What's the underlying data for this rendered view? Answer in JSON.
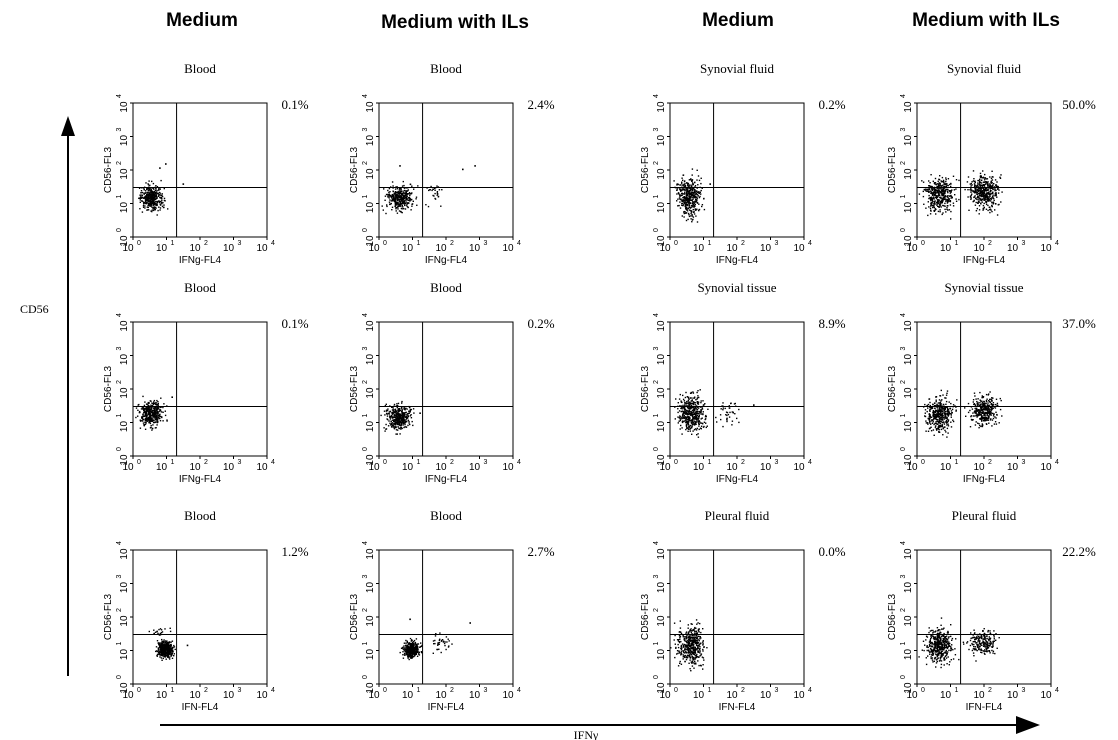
{
  "column_headers": [
    "Medium",
    "Medium with ILs",
    "Medium",
    "Medium with ILs"
  ],
  "y_axis_label": "CD56",
  "x_axis_label": "IFNγ",
  "chart_data": [
    {
      "type": "scatter",
      "row": 0,
      "col": 0,
      "title": "Blood",
      "percent": "0.1%",
      "xlabel": "IFNg-FL4",
      "ylabel": "CD56-FL3",
      "x_ticks": [
        "10",
        "10",
        "10",
        "10",
        "10"
      ],
      "tick_exponents": [
        "0",
        "1",
        "2",
        "3",
        "4"
      ],
      "xscale": "log",
      "yscale": "log",
      "xlim": [
        1,
        10000
      ],
      "ylim": [
        1,
        10000
      ],
      "gate": {
        "x": 20,
        "y": 30
      },
      "clusters": [
        {
          "x": [
            1,
            12
          ],
          "y": [
            4,
            55
          ],
          "n": 360
        }
      ],
      "outliers": [
        [
          6,
          120
        ],
        [
          9,
          160
        ],
        [
          30,
          40
        ]
      ]
    },
    {
      "type": "scatter",
      "row": 0,
      "col": 1,
      "title": "Blood",
      "percent": "2.4%",
      "xlabel": "IFNg-FL4",
      "ylabel": "CD56-FL3",
      "x_ticks": [
        "10",
        "10",
        "10",
        "10",
        "10"
      ],
      "tick_exponents": [
        "0",
        "1",
        "2",
        "3",
        "4"
      ],
      "xscale": "log",
      "yscale": "log",
      "xlim": [
        1,
        10000
      ],
      "ylim": [
        1,
        10000
      ],
      "gate": {
        "x": 20,
        "y": 30
      },
      "clusters": [
        {
          "x": [
            1,
            16
          ],
          "y": [
            4,
            55
          ],
          "n": 340
        },
        {
          "x": [
            16,
            120
          ],
          "y": [
            6,
            80
          ],
          "n": 30
        }
      ],
      "outliers": [
        [
          300,
          110
        ],
        [
          700,
          140
        ],
        [
          4,
          140
        ]
      ]
    },
    {
      "type": "scatter",
      "row": 0,
      "col": 2,
      "title": "Synovial fluid",
      "percent": "0.2%",
      "xlabel": "IFNg-FL4",
      "ylabel": "CD56-FL3",
      "x_ticks": [
        "10",
        "10",
        "10",
        "10",
        "10"
      ],
      "tick_exponents": [
        "0",
        "1",
        "2",
        "3",
        "4"
      ],
      "xscale": "log",
      "yscale": "log",
      "xlim": [
        1,
        10000
      ],
      "ylim": [
        1,
        10000
      ],
      "gate": {
        "x": 20,
        "y": 30
      },
      "clusters": [
        {
          "x": [
            1,
            12
          ],
          "y": [
            2,
            150
          ],
          "n": 420
        }
      ],
      "outliers": [
        [
          15,
          40
        ]
      ]
    },
    {
      "type": "scatter",
      "row": 0,
      "col": 3,
      "title": "Synovial fluid",
      "percent": "50.0%",
      "xlabel": "IFNg-FL4",
      "ylabel": "CD56-FL3",
      "x_ticks": [
        "10",
        "10",
        "10",
        "10",
        "10"
      ],
      "tick_exponents": [
        "0",
        "1",
        "2",
        "3",
        "4"
      ],
      "xscale": "log",
      "yscale": "log",
      "xlim": [
        1,
        10000
      ],
      "ylim": [
        1,
        10000
      ],
      "gate": {
        "x": 20,
        "y": 30
      },
      "clusters": [
        {
          "x": [
            1,
            20
          ],
          "y": [
            3,
            120
          ],
          "n": 380
        },
        {
          "x": [
            20,
            500
          ],
          "y": [
            4,
            130
          ],
          "n": 420
        }
      ],
      "outliers": []
    },
    {
      "type": "scatter",
      "row": 1,
      "col": 0,
      "title": "Blood",
      "percent": "0.1%",
      "xlabel": "IFNg-FL4",
      "ylabel": "CD56-FL3",
      "x_ticks": [
        "10",
        "10",
        "10",
        "10",
        "10"
      ],
      "tick_exponents": [
        "0",
        "1",
        "2",
        "3",
        "4"
      ],
      "xscale": "log",
      "yscale": "log",
      "xlim": [
        1,
        10000
      ],
      "ylim": [
        1,
        10000
      ],
      "gate": {
        "x": 20,
        "y": 30
      },
      "clusters": [
        {
          "x": [
            1,
            12
          ],
          "y": [
            5,
            75
          ],
          "n": 380
        }
      ],
      "outliers": [
        [
          14,
          60
        ]
      ]
    },
    {
      "type": "scatter",
      "row": 1,
      "col": 1,
      "title": "Blood",
      "percent": "0.2%",
      "xlabel": "IFNg-FL4",
      "ylabel": "CD56-FL3",
      "x_ticks": [
        "10",
        "10",
        "10",
        "10",
        "10"
      ],
      "tick_exponents": [
        "0",
        "1",
        "2",
        "3",
        "4"
      ],
      "xscale": "log",
      "yscale": "log",
      "xlim": [
        1,
        10000
      ],
      "ylim": [
        1,
        10000
      ],
      "gate": {
        "x": 20,
        "y": 30
      },
      "clusters": [
        {
          "x": [
            1,
            13
          ],
          "y": [
            4,
            55
          ],
          "n": 360
        }
      ],
      "outliers": [
        [
          16,
          20
        ]
      ]
    },
    {
      "type": "scatter",
      "row": 1,
      "col": 2,
      "title": "Synovial tissue",
      "percent": "8.9%",
      "xlabel": "IFNg-FL4",
      "ylabel": "CD56-FL3",
      "x_ticks": [
        "10",
        "10",
        "10",
        "10",
        "10"
      ],
      "tick_exponents": [
        "0",
        "1",
        "2",
        "3",
        "4"
      ],
      "xscale": "log",
      "yscale": "log",
      "xlim": [
        1,
        10000
      ],
      "ylim": [
        1,
        10000
      ],
      "gate": {
        "x": 20,
        "y": 30
      },
      "clusters": [
        {
          "x": [
            1,
            16
          ],
          "y": [
            3,
            130
          ],
          "n": 420
        },
        {
          "x": [
            16,
            150
          ],
          "y": [
            5,
            80
          ],
          "n": 40
        }
      ],
      "outliers": [
        [
          300,
          35
        ]
      ]
    },
    {
      "type": "scatter",
      "row": 1,
      "col": 3,
      "title": "Synovial tissue",
      "percent": "37.0%",
      "xlabel": "IFNg-FL4",
      "ylabel": "CD56-FL3",
      "x_ticks": [
        "10",
        "10",
        "10",
        "10",
        "10"
      ],
      "tick_exponents": [
        "0",
        "1",
        "2",
        "3",
        "4"
      ],
      "xscale": "log",
      "yscale": "log",
      "xlim": [
        1,
        10000
      ],
      "ylim": [
        1,
        10000
      ],
      "gate": {
        "x": 20,
        "y": 30
      },
      "clusters": [
        {
          "x": [
            1,
            20
          ],
          "y": [
            3,
            110
          ],
          "n": 380
        },
        {
          "x": [
            20,
            400
          ],
          "y": [
            5,
            110
          ],
          "n": 330
        }
      ],
      "outliers": []
    },
    {
      "type": "scatter",
      "row": 2,
      "col": 0,
      "title": "Blood",
      "percent": "1.2%",
      "xlabel": "IFN-FL4",
      "ylabel": "CD56-FL3",
      "x_ticks": [
        "10",
        "10",
        "10",
        "10",
        "10"
      ],
      "tick_exponents": [
        "0",
        "1",
        "2",
        "3",
        "4"
      ],
      "xscale": "log",
      "yscale": "log",
      "xlim": [
        1,
        10000
      ],
      "ylim": [
        1,
        10000
      ],
      "gate": {
        "x": 20,
        "y": 30
      },
      "clusters": [
        {
          "x": [
            4,
            20
          ],
          "y": [
            5,
            25
          ],
          "n": 420
        },
        {
          "x": [
            2,
            20
          ],
          "y": [
            25,
            60
          ],
          "n": 20
        }
      ],
      "outliers": [
        [
          40,
          15
        ]
      ]
    },
    {
      "type": "scatter",
      "row": 2,
      "col": 1,
      "title": "Blood",
      "percent": "2.7%",
      "xlabel": "IFN-FL4",
      "ylabel": "CD56-FL3",
      "x_ticks": [
        "10",
        "10",
        "10",
        "10",
        "10"
      ],
      "tick_exponents": [
        "0",
        "1",
        "2",
        "3",
        "4"
      ],
      "xscale": "log",
      "yscale": "log",
      "xlim": [
        1,
        10000
      ],
      "ylim": [
        1,
        10000
      ],
      "gate": {
        "x": 20,
        "y": 30
      },
      "clusters": [
        {
          "x": [
            4,
            20
          ],
          "y": [
            5,
            25
          ],
          "n": 400
        },
        {
          "x": [
            20,
            200
          ],
          "y": [
            5,
            60
          ],
          "n": 35
        }
      ],
      "outliers": [
        [
          500,
          70
        ],
        [
          8,
          90
        ]
      ]
    },
    {
      "type": "scatter",
      "row": 2,
      "col": 2,
      "title": "Pleural fluid",
      "percent": "0.0%",
      "xlabel": "IFN-FL4",
      "ylabel": "CD56-FL3",
      "x_ticks": [
        "10",
        "10",
        "10",
        "10",
        "10"
      ],
      "tick_exponents": [
        "0",
        "1",
        "2",
        "3",
        "4"
      ],
      "xscale": "log",
      "yscale": "log",
      "xlim": [
        1,
        10000
      ],
      "ylim": [
        1,
        10000
      ],
      "gate": {
        "x": 20,
        "y": 30
      },
      "clusters": [
        {
          "x": [
            1,
            15
          ],
          "y": [
            2,
            110
          ],
          "n": 420
        }
      ],
      "outliers": []
    },
    {
      "type": "scatter",
      "row": 2,
      "col": 3,
      "title": "Pleural fluid",
      "percent": "22.2%",
      "xlabel": "IFN-FL4",
      "ylabel": "CD56-FL3",
      "x_ticks": [
        "10",
        "10",
        "10",
        "10",
        "10"
      ],
      "tick_exponents": [
        "0",
        "1",
        "2",
        "3",
        "4"
      ],
      "xscale": "log",
      "yscale": "log",
      "xlim": [
        1,
        10000
      ],
      "ylim": [
        1,
        10000
      ],
      "gate": {
        "x": 20,
        "y": 30
      },
      "clusters": [
        {
          "x": [
            1,
            20
          ],
          "y": [
            2,
            100
          ],
          "n": 420
        },
        {
          "x": [
            20,
            400
          ],
          "y": [
            5,
            60
          ],
          "n": 200
        }
      ],
      "outliers": []
    }
  ]
}
